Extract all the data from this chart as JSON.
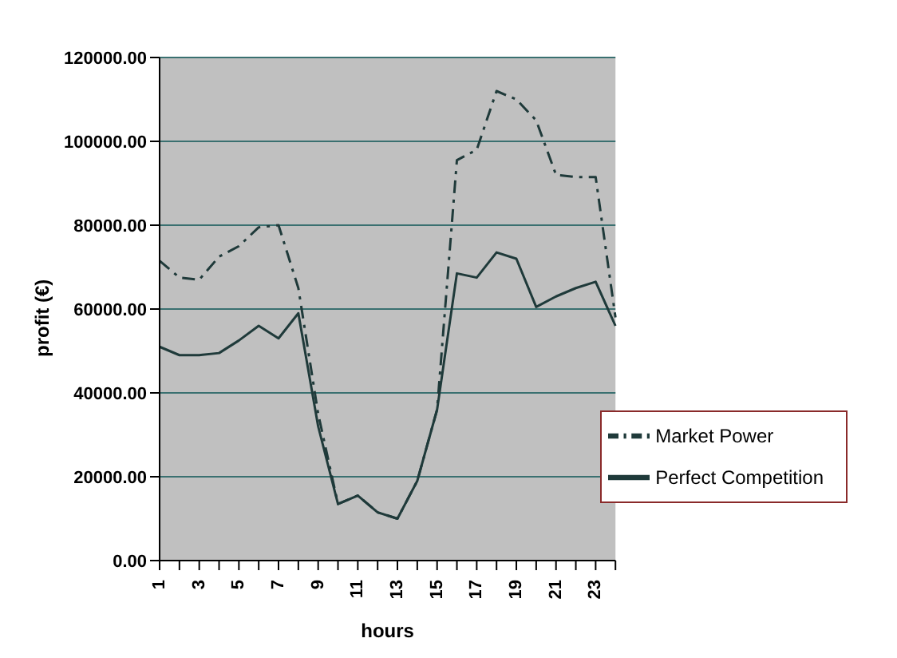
{
  "chart_data": {
    "type": "line",
    "xlabel": "hours",
    "ylabel": "profit (€)",
    "categories": [
      "1",
      null,
      "3",
      null,
      "5",
      null,
      "7",
      null,
      "9",
      null,
      "11",
      null,
      "13",
      null,
      "15",
      null,
      "17",
      null,
      "19",
      null,
      "21",
      null,
      "23",
      null
    ],
    "series": [
      {
        "name": "Market Power",
        "color": "#1f3a3a",
        "line_style": "dashed",
        "values": [
          71500,
          67500,
          67000,
          72500,
          75000,
          79500,
          80000,
          65000,
          35000,
          13500,
          15500,
          11500,
          10000,
          19000,
          36000,
          95500,
          98000,
          112000,
          110000,
          105000,
          92000,
          91500,
          91500,
          58000
        ]
      },
      {
        "name": "Perfect Competition",
        "color": "#1f3a3a",
        "line_style": "solid",
        "values": [
          51000,
          49000,
          49000,
          49500,
          52500,
          56000,
          53000,
          59000,
          32000,
          13500,
          15500,
          11500,
          10000,
          19000,
          36000,
          68500,
          67500,
          73500,
          72000,
          60500,
          63000,
          65000,
          66500,
          56000
        ]
      }
    ],
    "ylim": [
      0,
      120000
    ],
    "yticks": [
      {
        "value": 0,
        "label": "0.00"
      },
      {
        "value": 20000,
        "label": "20000.00"
      },
      {
        "value": 40000,
        "label": "40000.00"
      },
      {
        "value": 60000,
        "label": "60000.00"
      },
      {
        "value": 80000,
        "label": "80000.00"
      },
      {
        "value": 100000,
        "label": "100000.00"
      },
      {
        "value": 120000,
        "label": "120000.00"
      }
    ],
    "grid": "y",
    "legend": "bottom right",
    "marker": "none"
  }
}
